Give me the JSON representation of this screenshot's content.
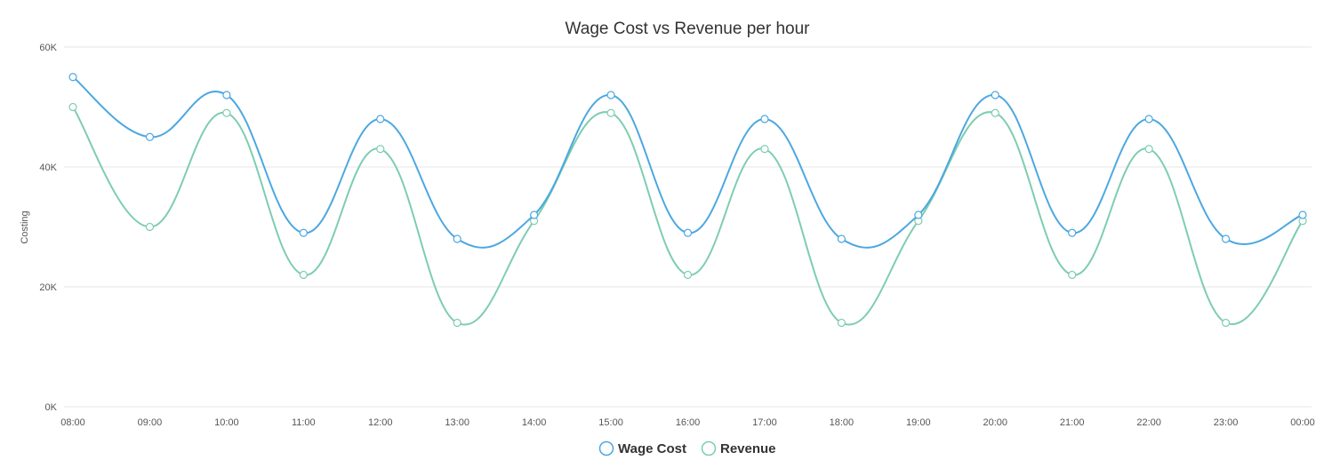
{
  "chart_data": {
    "type": "line",
    "title": "Wage Cost vs Revenue per hour",
    "xlabel": "",
    "ylabel": "Costing",
    "ylim": [
      0,
      60000
    ],
    "yticks": [
      {
        "value": 0,
        "label": "0K"
      },
      {
        "value": 20000,
        "label": "20K"
      },
      {
        "value": 40000,
        "label": "40K"
      },
      {
        "value": 60000,
        "label": "60K"
      }
    ],
    "categories": [
      "08:00",
      "09:00",
      "10:00",
      "11:00",
      "12:00",
      "13:00",
      "14:00",
      "15:00",
      "16:00",
      "17:00",
      "18:00",
      "19:00",
      "20:00",
      "21:00",
      "22:00",
      "23:00",
      "00:00"
    ],
    "series": [
      {
        "name": "Wage Cost",
        "color": "#4ca8e0",
        "values": [
          55000,
          45000,
          52000,
          29000,
          48000,
          28000,
          32000,
          52000,
          29000,
          48000,
          28000,
          32000,
          52000,
          29000,
          48000,
          28000,
          32000
        ]
      },
      {
        "name": "Revenue",
        "color": "#7ecdb0",
        "values": [
          50000,
          30000,
          49000,
          22000,
          43000,
          14000,
          31000,
          49000,
          22000,
          43000,
          14000,
          31000,
          49000,
          22000,
          43000,
          14000,
          31000
        ]
      }
    ],
    "grid": true,
    "legend_position": "bottom-center",
    "curve": "smooth"
  }
}
